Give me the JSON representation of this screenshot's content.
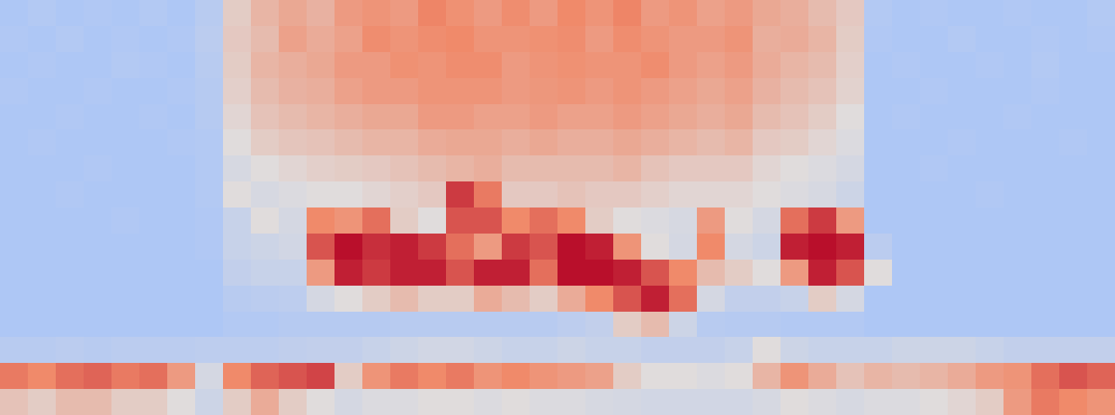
{
  "chart_data": {
    "type": "heatmap",
    "tick_labels": false,
    "color_range": [
      0,
      1
    ],
    "cells": [
      [
        0.3,
        0.32,
        0.3,
        0.31,
        0.3,
        0.32,
        0.3,
        0.34,
        0.55,
        0.62,
        0.66,
        0.63,
        0.7,
        0.72,
        0.7,
        0.76,
        0.73,
        0.7,
        0.74,
        0.7,
        0.75,
        0.72,
        0.76,
        0.7,
        0.72,
        0.68,
        0.7,
        0.66,
        0.64,
        0.6,
        0.56,
        0.32,
        0.3,
        0.31,
        0.3,
        0.3,
        0.31,
        0.3,
        0.3,
        0.32
      ],
      [
        0.31,
        0.3,
        0.32,
        0.3,
        0.31,
        0.3,
        0.31,
        0.35,
        0.56,
        0.6,
        0.68,
        0.65,
        0.68,
        0.74,
        0.72,
        0.74,
        0.75,
        0.72,
        0.72,
        0.73,
        0.74,
        0.7,
        0.74,
        0.72,
        0.7,
        0.7,
        0.72,
        0.64,
        0.65,
        0.62,
        0.55,
        0.31,
        0.3,
        0.3,
        0.32,
        0.3,
        0.3,
        0.31,
        0.3,
        0.31
      ],
      [
        0.3,
        0.31,
        0.3,
        0.3,
        0.32,
        0.31,
        0.3,
        0.34,
        0.55,
        0.62,
        0.64,
        0.66,
        0.7,
        0.7,
        0.73,
        0.72,
        0.74,
        0.74,
        0.7,
        0.72,
        0.73,
        0.72,
        0.72,
        0.74,
        0.7,
        0.68,
        0.7,
        0.65,
        0.62,
        0.6,
        0.54,
        0.3,
        0.31,
        0.3,
        0.3,
        0.31,
        0.3,
        0.32,
        0.3,
        0.3
      ],
      [
        0.31,
        0.3,
        0.3,
        0.31,
        0.3,
        0.3,
        0.31,
        0.33,
        0.54,
        0.6,
        0.63,
        0.64,
        0.68,
        0.7,
        0.7,
        0.72,
        0.72,
        0.72,
        0.7,
        0.71,
        0.72,
        0.7,
        0.72,
        0.7,
        0.68,
        0.66,
        0.68,
        0.63,
        0.6,
        0.58,
        0.53,
        0.3,
        0.3,
        0.31,
        0.3,
        0.3,
        0.3,
        0.31,
        0.3,
        0.3
      ],
      [
        0.3,
        0.3,
        0.31,
        0.3,
        0.3,
        0.31,
        0.3,
        0.33,
        0.52,
        0.58,
        0.6,
        0.62,
        0.64,
        0.66,
        0.66,
        0.7,
        0.7,
        0.68,
        0.68,
        0.7,
        0.68,
        0.68,
        0.7,
        0.68,
        0.66,
        0.64,
        0.66,
        0.6,
        0.58,
        0.55,
        0.5,
        0.3,
        0.31,
        0.3,
        0.3,
        0.3,
        0.31,
        0.3,
        0.3,
        0.3
      ],
      [
        0.3,
        0.31,
        0.3,
        0.3,
        0.3,
        0.3,
        0.31,
        0.32,
        0.5,
        0.55,
        0.57,
        0.58,
        0.6,
        0.62,
        0.62,
        0.65,
        0.66,
        0.66,
        0.64,
        0.66,
        0.64,
        0.64,
        0.66,
        0.64,
        0.62,
        0.6,
        0.62,
        0.56,
        0.55,
        0.52,
        0.48,
        0.3,
        0.3,
        0.3,
        0.31,
        0.3,
        0.3,
        0.3,
        0.31,
        0.3
      ],
      [
        0.3,
        0.3,
        0.3,
        0.31,
        0.3,
        0.3,
        0.3,
        0.32,
        0.46,
        0.5,
        0.52,
        0.54,
        0.55,
        0.56,
        0.58,
        0.6,
        0.62,
        0.64,
        0.6,
        0.6,
        0.6,
        0.6,
        0.62,
        0.58,
        0.56,
        0.56,
        0.56,
        0.52,
        0.5,
        0.48,
        0.45,
        0.3,
        0.3,
        0.31,
        0.3,
        0.3,
        0.3,
        0.3,
        0.3,
        0.3
      ],
      [
        0.3,
        0.3,
        0.31,
        0.3,
        0.3,
        0.3,
        0.3,
        0.32,
        0.5,
        0.46,
        0.48,
        0.5,
        0.5,
        0.52,
        0.54,
        0.56,
        0.9,
        0.78,
        0.56,
        0.56,
        0.58,
        0.56,
        0.56,
        0.54,
        0.52,
        0.52,
        0.52,
        0.5,
        0.48,
        0.46,
        0.42,
        0.3,
        0.3,
        0.3,
        0.3,
        0.31,
        0.3,
        0.3,
        0.3,
        0.3
      ],
      [
        0.3,
        0.3,
        0.3,
        0.3,
        0.31,
        0.3,
        0.3,
        0.31,
        0.4,
        0.5,
        0.45,
        0.75,
        0.72,
        0.8,
        0.55,
        0.5,
        0.85,
        0.85,
        0.75,
        0.8,
        0.75,
        0.55,
        0.5,
        0.48,
        0.46,
        0.7,
        0.5,
        0.45,
        0.8,
        0.9,
        0.7,
        0.3,
        0.3,
        0.3,
        0.3,
        0.3,
        0.3,
        0.3,
        0.3,
        0.3
      ],
      [
        0.3,
        0.3,
        0.3,
        0.3,
        0.3,
        0.3,
        0.3,
        0.31,
        0.4,
        0.42,
        0.44,
        0.85,
        0.98,
        0.92,
        0.95,
        0.9,
        0.8,
        0.7,
        0.9,
        0.85,
        0.98,
        0.95,
        0.72,
        0.5,
        0.45,
        0.75,
        0.45,
        0.42,
        0.95,
        0.98,
        0.95,
        0.35,
        0.3,
        0.3,
        0.3,
        0.3,
        0.3,
        0.3,
        0.3,
        0.3
      ],
      [
        0.3,
        0.3,
        0.3,
        0.3,
        0.3,
        0.3,
        0.3,
        0.3,
        0.38,
        0.4,
        0.4,
        0.7,
        0.95,
        0.9,
        0.95,
        0.95,
        0.85,
        0.95,
        0.95,
        0.8,
        0.98,
        0.98,
        0.95,
        0.85,
        0.75,
        0.6,
        0.55,
        0.5,
        0.7,
        0.95,
        0.85,
        0.5,
        0.3,
        0.3,
        0.3,
        0.3,
        0.3,
        0.3,
        0.3,
        0.3
      ],
      [
        0.3,
        0.3,
        0.3,
        0.3,
        0.3,
        0.3,
        0.3,
        0.3,
        0.34,
        0.35,
        0.36,
        0.45,
        0.5,
        0.55,
        0.6,
        0.55,
        0.55,
        0.65,
        0.6,
        0.55,
        0.65,
        0.75,
        0.85,
        0.95,
        0.8,
        0.45,
        0.38,
        0.38,
        0.4,
        0.55,
        0.45,
        0.3,
        0.3,
        0.3,
        0.3,
        0.3,
        0.3,
        0.3,
        0.3,
        0.3
      ],
      [
        0.3,
        0.3,
        0.3,
        0.3,
        0.3,
        0.3,
        0.3,
        0.3,
        0.32,
        0.32,
        0.33,
        0.33,
        0.33,
        0.33,
        0.34,
        0.34,
        0.34,
        0.34,
        0.34,
        0.34,
        0.36,
        0.38,
        0.55,
        0.6,
        0.42,
        0.34,
        0.33,
        0.33,
        0.32,
        0.32,
        0.32,
        0.3,
        0.3,
        0.3,
        0.3,
        0.3,
        0.3,
        0.3,
        0.3,
        0.3
      ],
      [
        0.34,
        0.34,
        0.35,
        0.34,
        0.35,
        0.35,
        0.35,
        0.36,
        0.36,
        0.36,
        0.37,
        0.38,
        0.38,
        0.4,
        0.42,
        0.44,
        0.44,
        0.42,
        0.4,
        0.4,
        0.42,
        0.4,
        0.4,
        0.38,
        0.38,
        0.38,
        0.4,
        0.5,
        0.42,
        0.4,
        0.4,
        0.4,
        0.42,
        0.42,
        0.42,
        0.4,
        0.38,
        0.38,
        0.38,
        0.38
      ],
      [
        0.78,
        0.75,
        0.8,
        0.82,
        0.78,
        0.8,
        0.7,
        0.45,
        0.75,
        0.82,
        0.85,
        0.88,
        0.55,
        0.72,
        0.78,
        0.75,
        0.78,
        0.72,
        0.75,
        0.72,
        0.7,
        0.68,
        0.55,
        0.5,
        0.5,
        0.48,
        0.5,
        0.62,
        0.72,
        0.65,
        0.58,
        0.62,
        0.6,
        0.62,
        0.65,
        0.7,
        0.72,
        0.8,
        0.85,
        0.82
      ],
      [
        0.58,
        0.55,
        0.6,
        0.6,
        0.55,
        0.55,
        0.5,
        0.42,
        0.55,
        0.65,
        0.55,
        0.5,
        0.45,
        0.48,
        0.48,
        0.5,
        0.5,
        0.48,
        0.5,
        0.48,
        0.48,
        0.46,
        0.45,
        0.44,
        0.44,
        0.44,
        0.44,
        0.46,
        0.5,
        0.48,
        0.46,
        0.48,
        0.48,
        0.5,
        0.52,
        0.55,
        0.7,
        0.78,
        0.75,
        0.72
      ]
    ]
  }
}
